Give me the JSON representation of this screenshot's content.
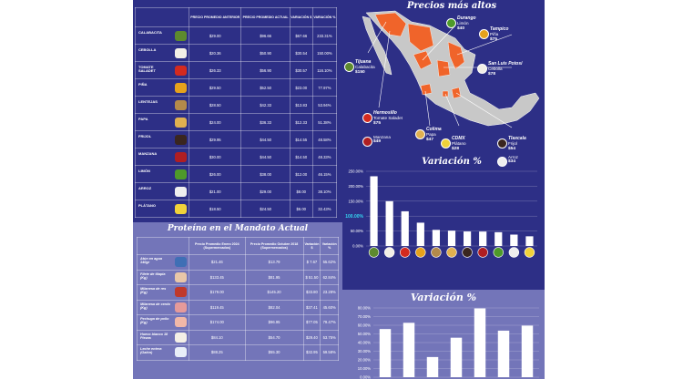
{
  "price_table": {
    "headers": [
      "PRECIO PROMEDIO ANTERIOR",
      "PRECIO PROMEDIO ACTUAL",
      "VARIACIÓN $",
      "VARIACIÓN %"
    ],
    "rows": [
      {
        "product": "CALABACITA",
        "prev": "$29.00",
        "curr": "$96.66",
        "var_abs": "$67.66",
        "var_pct": "233.31%",
        "color": "#5d8a2e"
      },
      {
        "product": "CEBOLLA",
        "prev": "$20.36",
        "curr": "$50.90",
        "var_abs": "$30.54",
        "var_pct": "150.00%",
        "color": "#f2efe6"
      },
      {
        "product": "TOMATE SALADET",
        "prev": "$26.33",
        "curr": "$56.90",
        "var_abs": "$30.57",
        "var_pct": "116.10%",
        "color": "#d42a1f"
      },
      {
        "product": "PIÑA",
        "prev": "$29.50",
        "curr": "$52.50",
        "var_abs": "$23.00",
        "var_pct": "77.97%",
        "color": "#e6a21c"
      },
      {
        "product": "LENTEJAS",
        "prev": "$28.50",
        "curr": "$42.33",
        "var_abs": "$13.83",
        "var_pct": "53.94%",
        "color": "#b38a4a"
      },
      {
        "product": "PAPA",
        "prev": "$24.00",
        "curr": "$36.33",
        "var_abs": "$12.33",
        "var_pct": "51.38%",
        "color": "#e0b050"
      },
      {
        "product": "FRIJOL",
        "prev": "$29.95",
        "curr": "$44.50",
        "var_abs": "$14.55",
        "var_pct": "48.58%",
        "color": "#3a2620"
      },
      {
        "product": "MANZANA",
        "prev": "$30.00",
        "curr": "$44.50",
        "var_abs": "$14.50",
        "var_pct": "48.33%",
        "color": "#b01e22"
      },
      {
        "product": "LIMÓN",
        "prev": "$26.00",
        "curr": "$38.00",
        "var_abs": "$12.00",
        "var_pct": "46.15%",
        "color": "#4e9a2a"
      },
      {
        "product": "ARROZ",
        "prev": "$21.00",
        "curr": "$29.00",
        "var_abs": "$8.00",
        "var_pct": "38.10%",
        "color": "#eeeeee"
      },
      {
        "product": "PLÁTANO",
        "prev": "$18.50",
        "curr": "$24.50",
        "var_abs": "$6.00",
        "var_pct": "32.43%",
        "color": "#f1d23a"
      }
    ]
  },
  "map_section": {
    "title": "Precios más altos",
    "map_base_color": "#c8c8c8",
    "map_highlight_color": "#f0642a",
    "cities": [
      {
        "city": "Durango",
        "product": "Limón",
        "price": "$40",
        "color": "#4e9a2a"
      },
      {
        "city": "Tampico",
        "product": "Piña",
        "price": "$75",
        "color": "#e6a21c"
      },
      {
        "city": "Tijuana",
        "product": "Calabacita",
        "price": "$150",
        "color": "#5d8a2e"
      },
      {
        "city": "San Luis Potosí",
        "product": "Cebolla",
        "price": "$78",
        "color": "#f2efe6"
      },
      {
        "city": "Hermosillo",
        "product": "Tomate Saladet",
        "price": "$75",
        "color": "#d42a1f"
      },
      {
        "city": "",
        "product": "Manzana",
        "price": "$49",
        "color": "#b01e22"
      },
      {
        "city": "Colima",
        "product": "Papa",
        "price": "$47",
        "color": "#e0b050"
      },
      {
        "city": "CDMX",
        "product": "Plátano",
        "price": "$28",
        "color": "#f1d23a"
      },
      {
        "city": "Tlaxcala",
        "product": "Frijol",
        "price": "$54",
        "color": "#3a2620"
      },
      {
        "city": "",
        "product": "Arroz",
        "price": "$34",
        "color": "#eeeeee"
      }
    ]
  },
  "protein_table": {
    "title": "Proteína en el Mandato Actual",
    "headers": [
      "Precio Promedio Enero 2024 (Supermercados)",
      "Precio Promedio Octubre 2018 (Supermercados)",
      "Variación $",
      "Variación %"
    ],
    "rows": [
      {
        "product": "Atún en agua 140gr",
        "prev": "$21.46",
        "curr": "$13.79",
        "var_abs": "$ 7.67",
        "var_pct": "55.62%",
        "color": "#3f6fb5"
      },
      {
        "product": "Filete de tilapia (Kg)",
        "prev": "$133.45",
        "curr": "$81.95",
        "var_abs": "$ 51.50",
        "var_pct": "62.84%",
        "color": "#e8c7a8"
      },
      {
        "product": "Milanesa de res (Kg)",
        "prev": "$179.00",
        "curr": "$145.20",
        "var_abs": "$33.80",
        "var_pct": "23.28%",
        "color": "#c0392b"
      },
      {
        "product": "Milanesa de cerdo (Kg)",
        "prev": "$119.45",
        "curr": "$82.04",
        "var_abs": "$37.41",
        "var_pct": "45.60%",
        "color": "#e59a9a"
      },
      {
        "product": "Pechuga de pollo (Kg)",
        "prev": "$174.00",
        "curr": "$96.95",
        "var_abs": "$77.05",
        "var_pct": "79.47%",
        "color": "#f0b8a8"
      },
      {
        "product": "Huevo blanco 18 Piezas",
        "prev": "$84.10",
        "curr": "$54.70",
        "var_abs": "$29.40",
        "var_pct": "53.75%",
        "color": "#f4f0e6"
      },
      {
        "product": "Leche entera (Galón)",
        "prev": "$88.25",
        "curr": "$55.30",
        "var_abs": "$32.95",
        "var_pct": "59.58%",
        "color": "#e8eef8"
      }
    ]
  },
  "chart_data": [
    {
      "type": "bar",
      "title": "Variación %",
      "categories": [
        "CALABACITA",
        "CEBOLLA",
        "TOMATE SALADET",
        "PIÑA",
        "LENTEJAS",
        "PAPA",
        "FRIJOL",
        "MANZANA",
        "LIMÓN",
        "ARROZ",
        "PLÁTANO"
      ],
      "values": [
        233.31,
        150.0,
        116.1,
        77.97,
        53.94,
        51.38,
        48.58,
        48.33,
        46.15,
        38.1,
        32.43
      ],
      "ylim": [
        0,
        250
      ],
      "yticks": [
        "0.00%",
        "50.00%",
        "100.00%",
        "150.00%",
        "200.00%",
        "250.00%"
      ],
      "highlight_label": "100.00%",
      "bar_color": "#ffffff",
      "grid": true
    },
    {
      "type": "bar",
      "title": "Variación %",
      "categories": [
        "Atún en agua 140gr",
        "Filete de tilapia (Kg)",
        "Milanesa de res (Kg)",
        "Milanesa de cerdo (Kg)",
        "Pechuga de pollo (Kg)",
        "Huevo blanco 18 Piezas",
        "Leche entera (Galón)"
      ],
      "values": [
        55.62,
        62.84,
        23.28,
        45.6,
        79.47,
        53.75,
        59.58
      ],
      "ylim": [
        0,
        80
      ],
      "yticks": [
        "0.00%",
        "10.00%",
        "20.00%",
        "30.00%",
        "40.00%",
        "50.00%",
        "60.00%",
        "70.00%",
        "80.00%"
      ],
      "bar_color": "#ffffff",
      "grid": true
    }
  ]
}
